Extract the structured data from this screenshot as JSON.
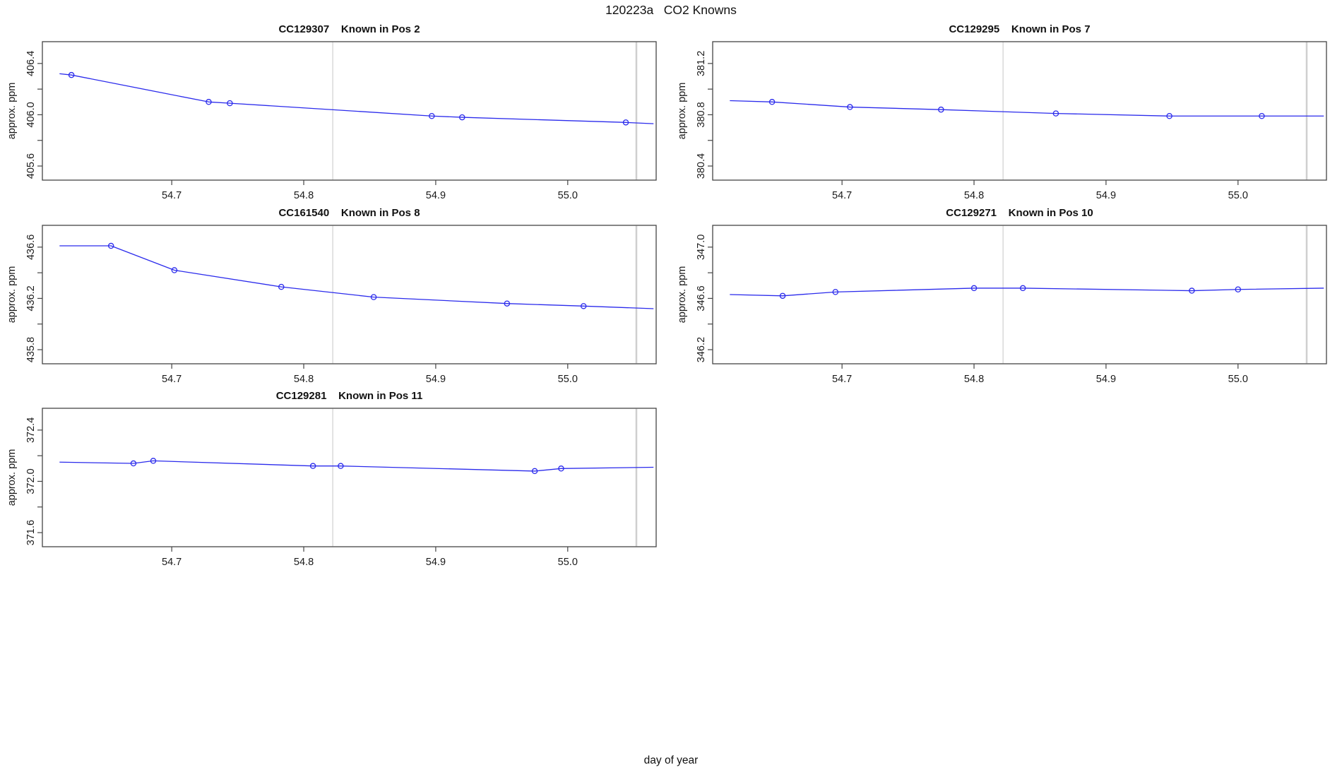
{
  "figure": {
    "main_title": "120223a   CO2 Knowns",
    "x_axis_label": "day of year"
  },
  "style": {
    "line_color": "#2b2bec",
    "marker_color": "#2b2bec",
    "reference_line_color": "#d9d9d9",
    "edge_reference_line_color": "#cfcfcf",
    "axis_color": "#444444",
    "text_color": "#1a1a1a"
  },
  "chart_data": [
    {
      "type": "line",
      "title": "CC129307    Known in Pos 2",
      "sample_id": "CC129307",
      "position_label": "Known in Pos 2",
      "ylabel": "approx. ppm",
      "xlim": [
        54.602,
        55.067
      ],
      "ylim": [
        405.49,
        406.57
      ],
      "x_ticks": [
        {
          "v": 54.7,
          "label": "54.7"
        },
        {
          "v": 54.8,
          "label": "54.8"
        },
        {
          "v": 54.9,
          "label": "54.9"
        },
        {
          "v": 55.0,
          "label": "55.0"
        }
      ],
      "y_ticks": [
        {
          "v": 405.6,
          "label": "405.6"
        },
        {
          "v": 405.8,
          "label": ""
        },
        {
          "v": 406.0,
          "label": "406.0"
        },
        {
          "v": 406.2,
          "label": ""
        },
        {
          "v": 406.4,
          "label": "406.4"
        }
      ],
      "reference_vlines": [
        54.822,
        55.052
      ],
      "points": [
        [
          54.624,
          406.31
        ],
        [
          54.728,
          406.1
        ],
        [
          54.744,
          406.09
        ],
        [
          54.897,
          405.99
        ],
        [
          54.92,
          405.98
        ],
        [
          55.044,
          405.94
        ]
      ],
      "line_path": [
        [
          54.615,
          406.32
        ],
        [
          54.624,
          406.31
        ],
        [
          54.728,
          406.1
        ],
        [
          54.744,
          406.09
        ],
        [
          54.897,
          405.99
        ],
        [
          54.92,
          405.98
        ],
        [
          55.044,
          405.94
        ],
        [
          55.065,
          405.93
        ]
      ]
    },
    {
      "type": "line",
      "title": "CC129295    Known in Pos 7",
      "sample_id": "CC129295",
      "position_label": "Known in Pos 7",
      "ylabel": "approx. ppm",
      "xlim": [
        54.602,
        55.067
      ],
      "ylim": [
        380.29,
        381.37
      ],
      "x_ticks": [
        {
          "v": 54.7,
          "label": "54.7"
        },
        {
          "v": 54.8,
          "label": "54.8"
        },
        {
          "v": 54.9,
          "label": "54.9"
        },
        {
          "v": 55.0,
          "label": "55.0"
        }
      ],
      "y_ticks": [
        {
          "v": 380.4,
          "label": "380.4"
        },
        {
          "v": 380.6,
          "label": ""
        },
        {
          "v": 380.8,
          "label": "380.8"
        },
        {
          "v": 381.0,
          "label": ""
        },
        {
          "v": 381.2,
          "label": "381.2"
        }
      ],
      "reference_vlines": [
        54.822,
        55.052
      ],
      "points": [
        [
          54.647,
          380.9
        ],
        [
          54.706,
          380.86
        ],
        [
          54.775,
          380.84
        ],
        [
          54.862,
          380.81
        ],
        [
          54.948,
          380.79
        ],
        [
          55.018,
          380.79
        ]
      ],
      "line_path": [
        [
          54.615,
          380.91
        ],
        [
          54.647,
          380.9
        ],
        [
          54.706,
          380.86
        ],
        [
          54.775,
          380.84
        ],
        [
          54.862,
          380.81
        ],
        [
          54.948,
          380.79
        ],
        [
          55.018,
          380.79
        ],
        [
          55.065,
          380.79
        ]
      ]
    },
    {
      "type": "line",
      "title": "CC161540    Known in Pos 8",
      "sample_id": "CC161540",
      "position_label": "Known in Pos 8",
      "ylabel": "approx. ppm",
      "xlim": [
        54.602,
        55.067
      ],
      "ylim": [
        435.69,
        436.77
      ],
      "x_ticks": [
        {
          "v": 54.7,
          "label": "54.7"
        },
        {
          "v": 54.8,
          "label": "54.8"
        },
        {
          "v": 54.9,
          "label": "54.9"
        },
        {
          "v": 55.0,
          "label": "55.0"
        }
      ],
      "y_ticks": [
        {
          "v": 435.8,
          "label": "435.8"
        },
        {
          "v": 436.0,
          "label": ""
        },
        {
          "v": 436.2,
          "label": "436.2"
        },
        {
          "v": 436.4,
          "label": ""
        },
        {
          "v": 436.6,
          "label": "436.6"
        }
      ],
      "reference_vlines": [
        54.822,
        55.052
      ],
      "points": [
        [
          54.654,
          436.61
        ],
        [
          54.702,
          436.42
        ],
        [
          54.783,
          436.29
        ],
        [
          54.853,
          436.21
        ],
        [
          54.954,
          436.16
        ],
        [
          55.012,
          436.14
        ]
      ],
      "line_path": [
        [
          54.615,
          436.61
        ],
        [
          54.654,
          436.61
        ],
        [
          54.702,
          436.42
        ],
        [
          54.783,
          436.29
        ],
        [
          54.853,
          436.21
        ],
        [
          54.954,
          436.16
        ],
        [
          55.012,
          436.14
        ],
        [
          55.065,
          436.12
        ]
      ]
    },
    {
      "type": "line",
      "title": "CC129271    Known in Pos 10",
      "sample_id": "CC129271",
      "position_label": "Known in Pos 10",
      "ylabel": "approx. ppm",
      "xlim": [
        54.602,
        55.067
      ],
      "ylim": [
        346.09,
        347.17
      ],
      "x_ticks": [
        {
          "v": 54.7,
          "label": "54.7"
        },
        {
          "v": 54.8,
          "label": "54.8"
        },
        {
          "v": 54.9,
          "label": "54.9"
        },
        {
          "v": 55.0,
          "label": "55.0"
        }
      ],
      "y_ticks": [
        {
          "v": 346.2,
          "label": "346.2"
        },
        {
          "v": 346.4,
          "label": ""
        },
        {
          "v": 346.6,
          "label": "346.6"
        },
        {
          "v": 346.8,
          "label": ""
        },
        {
          "v": 347.0,
          "label": "347.0"
        }
      ],
      "reference_vlines": [
        54.822,
        55.052
      ],
      "points": [
        [
          54.655,
          346.62
        ],
        [
          54.695,
          346.65
        ],
        [
          54.8,
          346.68
        ],
        [
          54.837,
          346.68
        ],
        [
          54.965,
          346.66
        ],
        [
          55.0,
          346.67
        ]
      ],
      "line_path": [
        [
          54.615,
          346.63
        ],
        [
          54.655,
          346.62
        ],
        [
          54.695,
          346.65
        ],
        [
          54.8,
          346.68
        ],
        [
          54.837,
          346.68
        ],
        [
          54.965,
          346.66
        ],
        [
          55.0,
          346.67
        ],
        [
          55.065,
          346.68
        ]
      ]
    },
    {
      "type": "line",
      "title": "CC129281    Known in Pos 11",
      "sample_id": "CC129281",
      "position_label": "Known in Pos 11",
      "ylabel": "approx. ppm",
      "xlim": [
        54.602,
        55.067
      ],
      "ylim": [
        371.49,
        372.57
      ],
      "x_ticks": [
        {
          "v": 54.7,
          "label": "54.7"
        },
        {
          "v": 54.8,
          "label": "54.8"
        },
        {
          "v": 54.9,
          "label": "54.9"
        },
        {
          "v": 55.0,
          "label": "55.0"
        }
      ],
      "y_ticks": [
        {
          "v": 371.6,
          "label": "371.6"
        },
        {
          "v": 371.8,
          "label": ""
        },
        {
          "v": 372.0,
          "label": "372.0"
        },
        {
          "v": 372.2,
          "label": ""
        },
        {
          "v": 372.4,
          "label": "372.4"
        }
      ],
      "reference_vlines": [
        54.822,
        55.052
      ],
      "points": [
        [
          54.671,
          372.14
        ],
        [
          54.686,
          372.16
        ],
        [
          54.807,
          372.12
        ],
        [
          54.828,
          372.12
        ],
        [
          54.975,
          372.08
        ],
        [
          54.995,
          372.1
        ]
      ],
      "line_path": [
        [
          54.615,
          372.15
        ],
        [
          54.671,
          372.14
        ],
        [
          54.686,
          372.16
        ],
        [
          54.807,
          372.12
        ],
        [
          54.828,
          372.12
        ],
        [
          54.975,
          372.08
        ],
        [
          54.995,
          372.1
        ],
        [
          55.065,
          372.11
        ]
      ]
    }
  ]
}
